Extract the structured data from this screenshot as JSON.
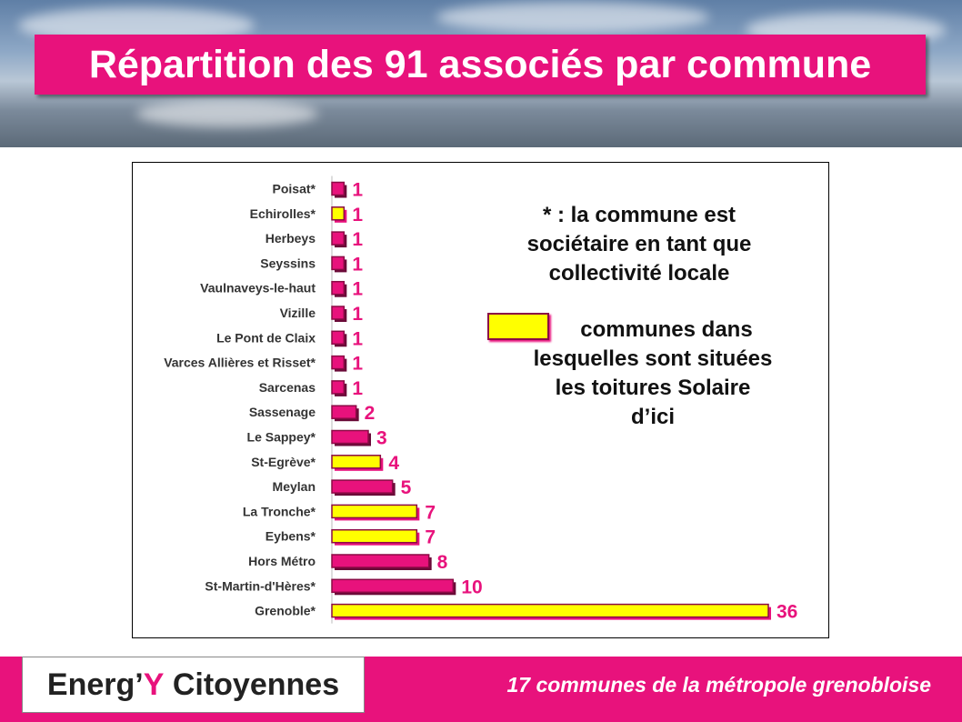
{
  "page": {
    "title": "Répartition des 91 associés par commune",
    "footer_caption": "17 communes de la métropole grenobloise"
  },
  "logo": {
    "part1": "Energ’",
    "part2": "Y",
    "part3": " Citoyennes"
  },
  "notes": {
    "line1": "* : la commune est",
    "line2": "sociétaire en tant que",
    "line3": "collectivité locale",
    "legend1": "communes dans",
    "legend2": "lesquelles sont situées",
    "legend3": "les toitures Solaire",
    "legend4": "d’ici"
  },
  "colors": {
    "accent": "#e8127c",
    "highlight": "#ffff00",
    "bar_border": "#8b0a45"
  },
  "chart_data": {
    "type": "bar",
    "orientation": "horizontal",
    "categories": [
      "Poisat*",
      "Echirolles*",
      "Herbeys",
      "Seyssins",
      "Vaulnaveys-le-haut",
      "Vizille",
      "Le Pont de Claix",
      "Varces Allières et Risset*",
      "Sarcenas",
      "Sassenage",
      "Le Sappey*",
      "St-Egrève*",
      "Meylan",
      "La Tronche*",
      "Eybens*",
      "Hors Métro",
      "St-Martin-d'Hères*",
      "Grenoble*"
    ],
    "values": [
      1,
      1,
      1,
      1,
      1,
      1,
      1,
      1,
      1,
      2,
      3,
      4,
      5,
      7,
      7,
      8,
      10,
      36
    ],
    "solar_roof": [
      false,
      true,
      false,
      false,
      false,
      false,
      false,
      false,
      false,
      false,
      false,
      true,
      false,
      true,
      true,
      false,
      false,
      true
    ],
    "xlim": [
      0,
      36
    ],
    "data_labels": true,
    "grid": false
  }
}
